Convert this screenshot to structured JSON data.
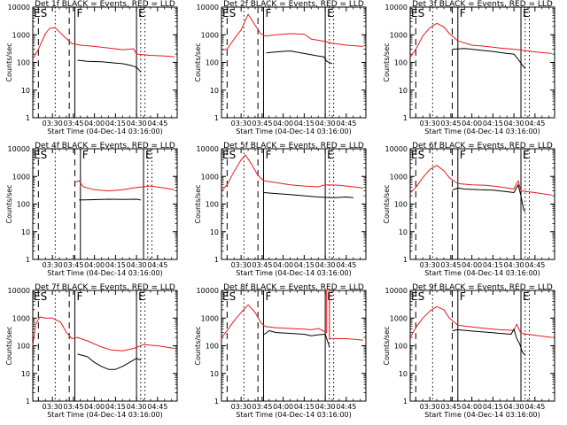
{
  "figure": {
    "background": "#ffffff",
    "events_color": "#000000",
    "lld_color": "#e8191c"
  },
  "chart_data": [
    {
      "type": "line",
      "title": "Det 1f BLACK = Events, RED = LLD",
      "xlabel": "Start Time (04-Dec-14 03:16:00)",
      "ylabel": "Counts/sec",
      "xlim": [
        "03:16",
        "04:59"
      ],
      "ylim": [
        1,
        10000
      ],
      "yscale": "log",
      "grid": false,
      "x_ticks": [
        "03:30",
        "03:45",
        "04:00",
        "04:15",
        "04:30",
        "04:45"
      ],
      "y_ticks": [
        "1",
        "10",
        "100",
        "1000",
        "10000"
      ],
      "markers": [
        {
          "label": "ES",
          "time": "03:16"
        },
        {
          "label": "F",
          "time": "03:46"
        },
        {
          "label": "E",
          "time": "04:30"
        }
      ],
      "series": [
        {
          "name": "Events",
          "color": "#000000",
          "x": [
            "03:48",
            "03:55",
            "04:05",
            "04:15",
            "04:20",
            "04:25",
            "04:29",
            "04:31",
            "04:33"
          ],
          "values": [
            120,
            110,
            105,
            95,
            90,
            80,
            70,
            60,
            45
          ]
        },
        {
          "name": "LLD",
          "color": "#e8191c",
          "x": [
            "03:16",
            "03:20",
            "03:25",
            "03:28",
            "03:32",
            "03:38",
            "03:44",
            "03:50",
            "04:00",
            "04:10",
            "04:20",
            "04:28",
            "04:30",
            "04:40",
            "04:50",
            "04:57"
          ],
          "values": [
            130,
            300,
            1100,
            1700,
            1800,
            900,
            480,
            420,
            380,
            330,
            290,
            310,
            200,
            180,
            170,
            160
          ]
        }
      ]
    },
    {
      "type": "line",
      "title": "Det 2f BLACK = Events, RED = LLD",
      "xlabel": "Start Time (04-Dec-14 03:16:00)",
      "ylabel": "Counts/sec",
      "xlim": [
        "03:16",
        "04:59"
      ],
      "ylim": [
        1,
        10000
      ],
      "yscale": "log",
      "grid": false,
      "x_ticks": [
        "03:30",
        "03:45",
        "04:00",
        "04:15",
        "04:30",
        "04:45"
      ],
      "y_ticks": [
        "1",
        "10",
        "100",
        "1000",
        "10000"
      ],
      "markers": [
        {
          "label": "ES",
          "time": "03:16"
        },
        {
          "label": "F",
          "time": "03:46"
        },
        {
          "label": "E",
          "time": "04:30"
        }
      ],
      "series": [
        {
          "name": "Events",
          "color": "#000000",
          "x": [
            "03:48",
            "03:55",
            "04:05",
            "04:15",
            "04:25",
            "04:29",
            "04:31",
            "04:35"
          ],
          "values": [
            220,
            240,
            260,
            210,
            170,
            160,
            110,
            90
          ]
        },
        {
          "name": "LLD",
          "color": "#e8191c",
          "x": [
            "03:16",
            "03:20",
            "03:25",
            "03:30",
            "03:35",
            "03:40",
            "03:44",
            "03:47",
            "03:55",
            "04:05",
            "04:15",
            "04:20",
            "04:28",
            "04:35",
            "04:45",
            "04:57"
          ],
          "values": [
            280,
            300,
            700,
            1500,
            5500,
            2200,
            1100,
            900,
            1000,
            1100,
            1050,
            700,
            600,
            500,
            420,
            380
          ]
        }
      ]
    },
    {
      "type": "line",
      "title": "Det 3f BLACK = Events, RED = LLD",
      "xlabel": "Start Time (04-Dec-14 03:16:00)",
      "ylabel": "Counts/sec",
      "xlim": [
        "03:16",
        "04:59"
      ],
      "ylim": [
        1,
        10000
      ],
      "yscale": "log",
      "grid": false,
      "x_ticks": [
        "03:30",
        "03:45",
        "04:00",
        "04:15",
        "04:30",
        "04:45"
      ],
      "y_ticks": [
        "1",
        "10",
        "100",
        "1000",
        "10000"
      ],
      "markers": [
        {
          "label": "ES",
          "time": "03:16"
        },
        {
          "label": "F",
          "time": "03:50"
        },
        {
          "label": "E",
          "time": "04:35"
        }
      ],
      "series": [
        {
          "name": "Events",
          "color": "#000000",
          "x": [
            "03:46",
            "03:55",
            "04:05",
            "04:15",
            "04:25",
            "04:30",
            "04:33",
            "04:36",
            "04:38"
          ],
          "values": [
            300,
            320,
            280,
            250,
            210,
            200,
            130,
            80,
            60
          ]
        },
        {
          "name": "LLD",
          "color": "#e8191c",
          "x": [
            "03:16",
            "03:20",
            "03:25",
            "03:30",
            "03:35",
            "03:40",
            "03:44",
            "03:50",
            "04:00",
            "04:10",
            "04:20",
            "04:30",
            "04:35",
            "04:45",
            "04:57"
          ],
          "values": [
            150,
            300,
            900,
            1800,
            2600,
            1900,
            1100,
            600,
            420,
            380,
            330,
            300,
            280,
            240,
            210
          ]
        }
      ]
    },
    {
      "type": "line",
      "title": "Det 4f BLACK = Events, RED = LLD",
      "xlabel": "Start Time (04-Dec-14 03:16:00)",
      "ylabel": "Counts/sec",
      "xlim": [
        "03:16",
        "04:59"
      ],
      "ylim": [
        1,
        10000
      ],
      "yscale": "log",
      "grid": false,
      "x_ticks": [
        "03:30",
        "03:45",
        "04:00",
        "04:15",
        "04:30",
        "04:45"
      ],
      "y_ticks": [
        "1",
        "10",
        "100",
        "1000",
        "10000"
      ],
      "markers": [
        {
          "label": "ES",
          "time": "03:16"
        },
        {
          "label": "F",
          "time": "03:50"
        },
        {
          "label": "E",
          "time": "04:35"
        }
      ],
      "series": [
        {
          "name": "Events",
          "color": "#000000",
          "x": [
            "03:49",
            "04:00",
            "04:10",
            "04:20",
            "04:30",
            "04:33"
          ],
          "values": [
            140,
            145,
            150,
            148,
            150,
            140
          ]
        },
        {
          "name": "LLD",
          "color": "#e8191c",
          "x": [
            "03:46",
            "03:49",
            "03:52",
            "04:00",
            "04:10",
            "04:20",
            "04:30",
            "04:40",
            "04:50",
            "04:57"
          ],
          "values": [
            600,
            700,
            420,
            330,
            300,
            330,
            400,
            450,
            380,
            330
          ]
        }
      ]
    },
    {
      "type": "line",
      "title": "Det 5f BLACK = Events, RED = LLD",
      "xlabel": "Start Time (04-Dec-14 03:16:00)",
      "ylabel": "Counts/sec",
      "xlim": [
        "03:16",
        "04:59"
      ],
      "ylim": [
        1,
        10000
      ],
      "yscale": "log",
      "grid": false,
      "x_ticks": [
        "03:30",
        "03:45",
        "04:00",
        "04:15",
        "04:30",
        "04:45"
      ],
      "y_ticks": [
        "1",
        "10",
        "100",
        "1000",
        "10000"
      ],
      "markers": [
        {
          "label": "ES",
          "time": "03:16"
        },
        {
          "label": "F",
          "time": "03:46"
        },
        {
          "label": "E",
          "time": "04:30"
        }
      ],
      "series": [
        {
          "name": "Events",
          "color": "#000000",
          "x": [
            "03:46",
            "03:55",
            "04:05",
            "04:15",
            "04:25",
            "04:35",
            "04:45",
            "04:50"
          ],
          "values": [
            260,
            240,
            220,
            200,
            180,
            170,
            180,
            170
          ]
        },
        {
          "name": "LLD",
          "color": "#e8191c",
          "x": [
            "03:16",
            "03:20",
            "03:25",
            "03:30",
            "03:33",
            "03:37",
            "03:42",
            "03:46",
            "03:55",
            "04:05",
            "04:15",
            "04:25",
            "04:30",
            "04:40",
            "04:50",
            "04:57"
          ],
          "values": [
            300,
            500,
            1500,
            4000,
            6000,
            3000,
            1100,
            700,
            600,
            500,
            450,
            420,
            500,
            480,
            420,
            380
          ]
        }
      ]
    },
    {
      "type": "line",
      "title": "Det 6f BLACK = Events, RED = LLD",
      "xlabel": "Start Time (04-Dec-14 03:16:00)",
      "ylabel": "Counts/sec",
      "xlim": [
        "03:16",
        "04:59"
      ],
      "ylim": [
        1,
        10000
      ],
      "yscale": "log",
      "grid": false,
      "x_ticks": [
        "03:30",
        "03:45",
        "04:00",
        "04:15",
        "04:30",
        "04:45"
      ],
      "y_ticks": [
        "1",
        "10",
        "100",
        "1000",
        "10000"
      ],
      "markers": [
        {
          "label": "ES",
          "time": "03:16"
        },
        {
          "label": "F",
          "time": "03:50"
        },
        {
          "label": "E",
          "time": "04:35"
        }
      ],
      "series": [
        {
          "name": "Events",
          "color": "#000000",
          "x": [
            "03:46",
            "03:50",
            "03:55",
            "04:05",
            "04:15",
            "04:25",
            "04:30",
            "04:33",
            "04:35",
            "04:37",
            "04:38"
          ],
          "values": [
            320,
            380,
            350,
            330,
            320,
            280,
            260,
            500,
            200,
            60,
            55
          ]
        },
        {
          "name": "LLD",
          "color": "#e8191c",
          "x": [
            "03:16",
            "03:20",
            "03:25",
            "03:30",
            "03:35",
            "03:40",
            "03:44",
            "03:50",
            "04:00",
            "04:10",
            "04:20",
            "04:30",
            "04:33",
            "04:35",
            "04:45",
            "04:57"
          ],
          "values": [
            250,
            400,
            900,
            1800,
            2500,
            1600,
            900,
            550,
            500,
            480,
            420,
            350,
            700,
            300,
            260,
            210
          ]
        }
      ]
    },
    {
      "type": "line",
      "title": "Det 7f BLACK = Events, RED = LLD",
      "xlabel": "Start Time (04-Dec-14 03:16:00)",
      "ylabel": "Counts/sec",
      "xlim": [
        "03:16",
        "04:59"
      ],
      "ylim": [
        1,
        10000
      ],
      "yscale": "log",
      "grid": false,
      "x_ticks": [
        "03:30",
        "03:45",
        "04:00",
        "04:15",
        "04:30",
        "04:45"
      ],
      "y_ticks": [
        "1",
        "10",
        "100",
        "1000",
        "10000"
      ],
      "markers": [
        {
          "label": "ES",
          "time": "03:16"
        },
        {
          "label": "F",
          "time": "03:46"
        },
        {
          "label": "E",
          "time": "04:30"
        }
      ],
      "series": [
        {
          "name": "Events",
          "color": "#000000",
          "x": [
            "03:48",
            "03:55",
            "04:00",
            "04:05",
            "04:10",
            "04:15",
            "04:20",
            "04:25",
            "04:30",
            "04:33"
          ],
          "values": [
            50,
            40,
            25,
            18,
            14,
            14,
            18,
            25,
            35,
            30
          ]
        },
        {
          "name": "LLD",
          "color": "#e8191c",
          "x": [
            "03:16",
            "03:18",
            "03:21",
            "03:25",
            "03:30",
            "03:36",
            "03:40",
            "03:44",
            "03:48",
            "03:55",
            "04:05",
            "04:12",
            "04:20",
            "04:28",
            "04:35",
            "04:45",
            "04:57"
          ],
          "values": [
            100,
            600,
            1100,
            1000,
            1000,
            700,
            300,
            180,
            200,
            150,
            90,
            70,
            65,
            80,
            110,
            100,
            80
          ]
        }
      ]
    },
    {
      "type": "line",
      "title": "Det 8f BLACK = Events, RED = LLD",
      "xlabel": "Start Time (04-Dec-14 03:16:00)",
      "ylabel": "Counts/sec",
      "xlim": [
        "03:16",
        "04:59"
      ],
      "ylim": [
        1,
        10000
      ],
      "yscale": "log",
      "grid": false,
      "x_ticks": [
        "03:30",
        "03:45",
        "04:00",
        "04:15",
        "04:30",
        "04:45"
      ],
      "y_ticks": [
        "1",
        "10",
        "100",
        "1000",
        "10000"
      ],
      "markers": [
        {
          "label": "ES",
          "time": "03:16"
        },
        {
          "label": "F",
          "time": "03:46"
        },
        {
          "label": "E",
          "time": "04:30"
        }
      ],
      "series": [
        {
          "name": "Events",
          "color": "#000000",
          "x": [
            "03:46",
            "03:50",
            "03:55",
            "04:05",
            "04:15",
            "04:20",
            "04:25",
            "04:30",
            "04:33"
          ],
          "values": [
            250,
            350,
            300,
            280,
            260,
            230,
            250,
            260,
            90
          ]
        },
        {
          "name": "LLD",
          "color": "#e8191c",
          "x": [
            "03:16",
            "03:20",
            "03:25",
            "03:30",
            "03:35",
            "03:40",
            "03:44",
            "03:47",
            "03:55",
            "04:05",
            "04:15",
            "04:20",
            "04:25",
            "04:31",
            "04:31",
            "04:32",
            "04:33",
            "04:33",
            "04:45",
            "04:57"
          ],
          "values": [
            200,
            350,
            800,
            1600,
            3000,
            1600,
            700,
            500,
            450,
            420,
            400,
            380,
            420,
            300,
            10000,
            10000,
            10000,
            180,
            180,
            160
          ]
        }
      ]
    },
    {
      "type": "line",
      "title": "Det 9f BLACK = Events, RED = LLD",
      "xlabel": "Start Time (04-Dec-14 03:16:00)",
      "ylabel": "Counts/sec",
      "xlim": [
        "03:16",
        "04:59"
      ],
      "ylim": [
        1,
        10000
      ],
      "yscale": "log",
      "grid": false,
      "x_ticks": [
        "03:30",
        "03:45",
        "04:00",
        "04:15",
        "04:30",
        "04:45"
      ],
      "y_ticks": [
        "1",
        "10",
        "100",
        "1000",
        "10000"
      ],
      "markers": [
        {
          "label": "ES",
          "time": "03:16"
        },
        {
          "label": "F",
          "time": "03:50"
        },
        {
          "label": "E",
          "time": "04:35"
        }
      ],
      "series": [
        {
          "name": "Events",
          "color": "#000000",
          "x": [
            "03:46",
            "03:50",
            "04:00",
            "04:10",
            "04:20",
            "04:28",
            "04:30",
            "04:32",
            "04:34",
            "04:36",
            "04:38"
          ],
          "values": [
            350,
            380,
            340,
            310,
            280,
            260,
            400,
            180,
            120,
            60,
            45
          ]
        },
        {
          "name": "LLD",
          "color": "#e8191c",
          "x": [
            "03:16",
            "03:20",
            "03:25",
            "03:30",
            "03:35",
            "03:40",
            "03:44",
            "03:50",
            "04:00",
            "04:10",
            "04:20",
            "04:30",
            "04:32",
            "04:35",
            "04:45",
            "04:57"
          ],
          "values": [
            200,
            450,
            1000,
            1800,
            2600,
            2000,
            1000,
            550,
            480,
            420,
            380,
            360,
            600,
            280,
            240,
            200
          ]
        }
      ]
    }
  ]
}
